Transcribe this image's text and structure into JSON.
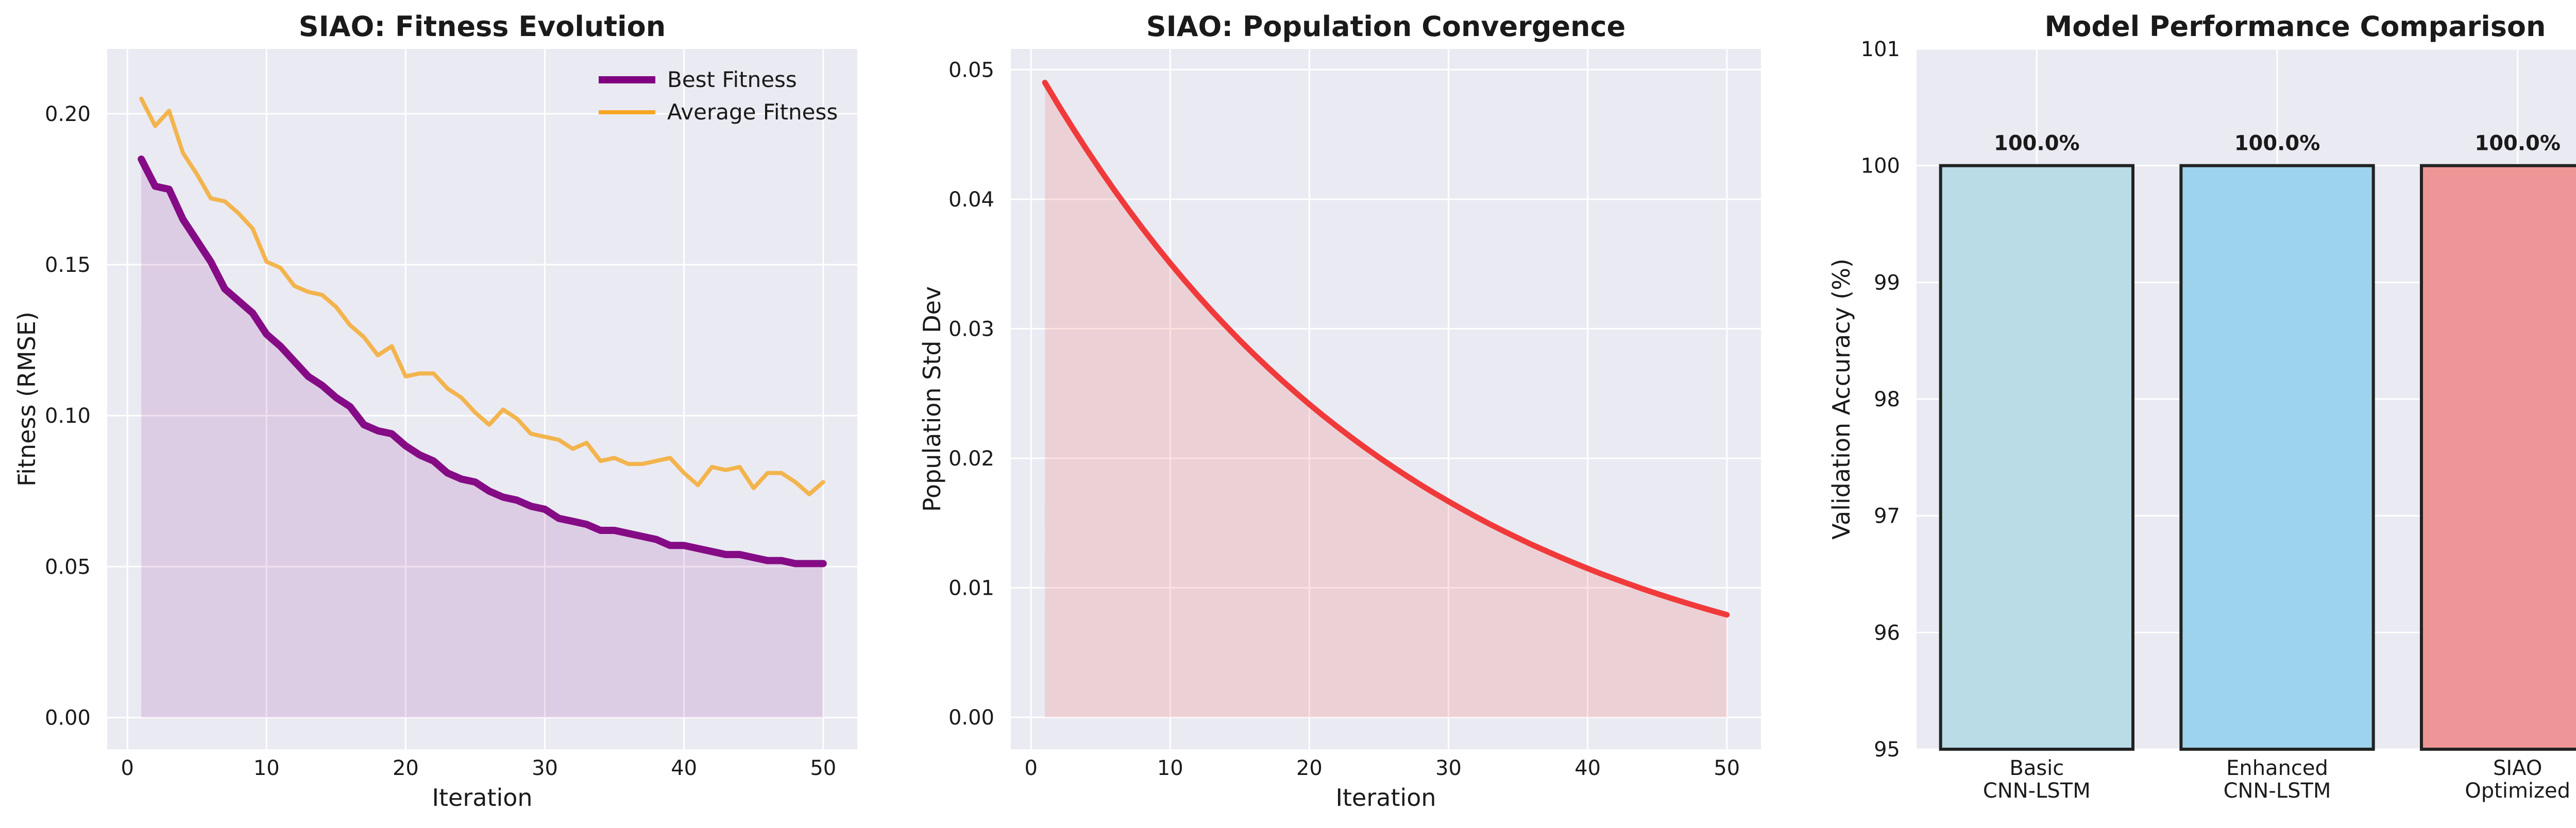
{
  "figure": {
    "background": "#ffffff",
    "plot_background": "#eaeaf2"
  },
  "chart_data": [
    {
      "type": "line",
      "title": "SIAO: Fitness Evolution",
      "xlabel": "Iteration",
      "ylabel": "Fitness (RMSE)",
      "xlim": [
        -1.45,
        52.45
      ],
      "ylim": [
        -0.0105,
        0.2215
      ],
      "xticks": [
        0,
        10,
        20,
        30,
        40,
        50
      ],
      "xtick_labels": [
        "0",
        "10",
        "20",
        "30",
        "40",
        "50"
      ],
      "yticks": [
        0.0,
        0.05,
        0.1,
        0.15,
        0.2
      ],
      "ytick_labels": [
        "0.00",
        "0.05",
        "0.10",
        "0.15",
        "0.20"
      ],
      "grid": true,
      "legend": "top-right",
      "x": [
        1,
        2,
        3,
        4,
        5,
        6,
        7,
        8,
        9,
        10,
        11,
        12,
        13,
        14,
        15,
        16,
        17,
        18,
        19,
        20,
        21,
        22,
        23,
        24,
        25,
        26,
        27,
        28,
        29,
        30,
        31,
        32,
        33,
        34,
        35,
        36,
        37,
        38,
        39,
        40,
        41,
        42,
        43,
        44,
        45,
        46,
        47,
        48,
        49,
        50
      ],
      "series": [
        {
          "name": "Best Fitness",
          "color": "#800080",
          "fill": true,
          "values": [
            0.185,
            0.176,
            0.175,
            0.165,
            0.158,
            0.151,
            0.142,
            0.138,
            0.134,
            0.127,
            0.123,
            0.118,
            0.113,
            0.11,
            0.106,
            0.103,
            0.097,
            0.095,
            0.094,
            0.09,
            0.087,
            0.085,
            0.081,
            0.079,
            0.078,
            0.075,
            0.073,
            0.072,
            0.07,
            0.069,
            0.066,
            0.065,
            0.064,
            0.062,
            0.062,
            0.061,
            0.06,
            0.059,
            0.057,
            0.057,
            0.056,
            0.055,
            0.054,
            0.054,
            0.053,
            0.052,
            0.052,
            0.051,
            0.051,
            0.051
          ]
        },
        {
          "name": "Average Fitness",
          "color": "#f5a623",
          "fill": false,
          "values": [
            0.205,
            0.196,
            0.201,
            0.187,
            0.18,
            0.172,
            0.171,
            0.167,
            0.162,
            0.151,
            0.149,
            0.143,
            0.141,
            0.14,
            0.136,
            0.13,
            0.126,
            0.12,
            0.123,
            0.113,
            0.114,
            0.114,
            0.109,
            0.106,
            0.101,
            0.097,
            0.102,
            0.099,
            0.094,
            0.093,
            0.092,
            0.089,
            0.091,
            0.085,
            0.086,
            0.084,
            0.084,
            0.085,
            0.086,
            0.081,
            0.077,
            0.083,
            0.082,
            0.083,
            0.076,
            0.081,
            0.081,
            0.078,
            0.074,
            0.078
          ]
        }
      ]
    },
    {
      "type": "area",
      "title": "SIAO: Population Convergence",
      "xlabel": "Iteration",
      "ylabel": "Population Std Dev",
      "xlim": [
        -1.45,
        52.45
      ],
      "ylim": [
        -0.00246,
        0.0516
      ],
      "xticks": [
        0,
        10,
        20,
        30,
        40,
        50
      ],
      "xtick_labels": [
        "0",
        "10",
        "20",
        "30",
        "40",
        "50"
      ],
      "yticks": [
        0.0,
        0.01,
        0.02,
        0.03,
        0.04,
        0.05
      ],
      "ytick_labels": [
        "0.00",
        "0.01",
        "0.02",
        "0.03",
        "0.04",
        "0.05"
      ],
      "grid": true,
      "x": [
        1,
        2,
        3,
        4,
        5,
        6,
        7,
        8,
        9,
        10,
        11,
        12,
        13,
        14,
        15,
        16,
        17,
        18,
        19,
        20,
        21,
        22,
        23,
        24,
        25,
        26,
        27,
        28,
        29,
        30,
        31,
        32,
        33,
        34,
        35,
        36,
        37,
        38,
        39,
        40,
        41,
        42,
        43,
        44,
        45,
        46,
        47,
        48,
        49,
        50
      ],
      "series": [
        {
          "color": "#f03030",
          "fill": true,
          "values": [
            0.049,
            0.04721,
            0.04549,
            0.04383,
            0.04223,
            0.04069,
            0.0392,
            0.03777,
            0.03639,
            0.03506,
            0.03378,
            0.03255,
            0.03136,
            0.03022,
            0.02911,
            0.02805,
            0.02703,
            0.02604,
            0.02509,
            0.02417,
            0.02329,
            0.02244,
            0.02162,
            0.02083,
            0.02007,
            0.01934,
            0.01863,
            0.01795,
            0.0173,
            0.01667,
            0.01606,
            0.01547,
            0.0149,
            0.01436,
            0.01384,
            0.01333,
            0.01285,
            0.01238,
            0.01193,
            0.01149,
            0.01107,
            0.01067,
            0.01028,
            0.0099,
            0.00954,
            0.00919,
            0.00886,
            0.00853,
            0.00822,
            0.00792
          ]
        }
      ]
    },
    {
      "type": "bar",
      "title": "Model Performance Comparison",
      "xlabel": "",
      "ylabel": "Validation Accuracy (%)",
      "ylim": [
        95,
        101
      ],
      "yticks": [
        95,
        96,
        97,
        98,
        99,
        100,
        101
      ],
      "ytick_labels": [
        "95",
        "96",
        "97",
        "98",
        "99",
        "100",
        "101"
      ],
      "grid": true,
      "categories": [
        [
          "Basic",
          "CNN-LSTM"
        ],
        [
          "Enhanced",
          "CNN-LSTM"
        ],
        [
          "SIAO",
          "Optimized"
        ]
      ],
      "values": [
        100.0,
        100.0,
        100.0
      ],
      "data_labels": [
        "100.0%",
        "100.0%",
        "100.0%"
      ],
      "colors": [
        "#b9dce6",
        "#9dd3ec",
        "#ee9697"
      ]
    }
  ]
}
